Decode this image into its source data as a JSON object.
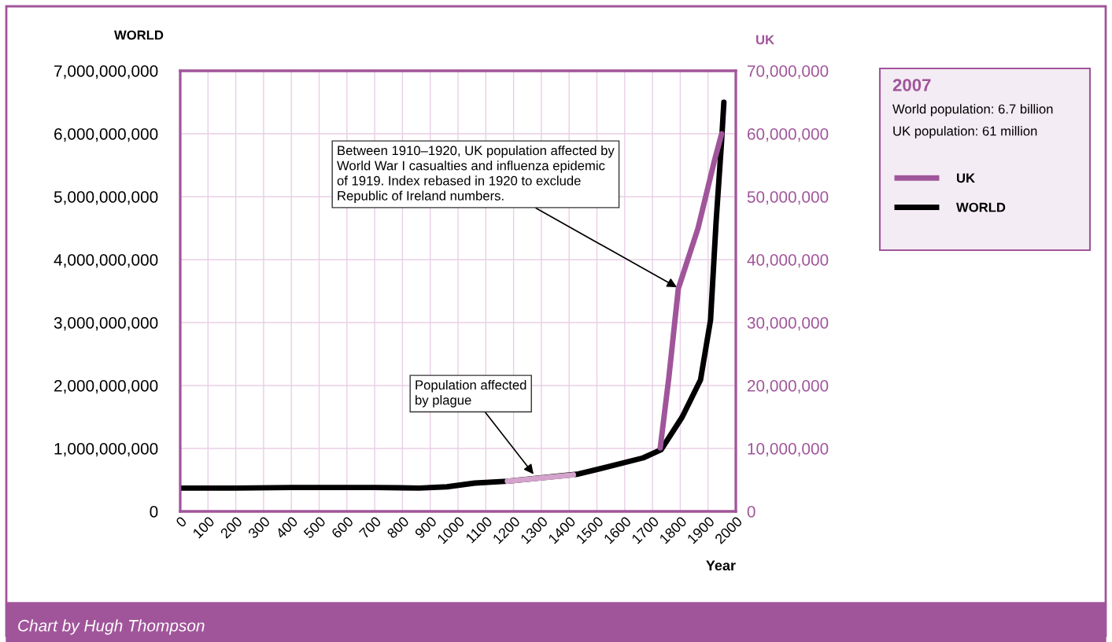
{
  "chart_data": {
    "type": "line",
    "xlabel": "Year",
    "ylabel": "WORLD",
    "y2label": "UK",
    "xlim": [
      0,
      2000
    ],
    "xticks": [
      0,
      100,
      200,
      300,
      400,
      500,
      600,
      700,
      800,
      900,
      1000,
      1100,
      1200,
      1300,
      1400,
      1500,
      1600,
      1700,
      1800,
      1900,
      2000
    ],
    "ylim": [
      0,
      7000000000
    ],
    "yticks": [
      0,
      {
        "value": 1000000000,
        "label": "1,000,000,000"
      },
      {
        "value": 2000000000,
        "label": "2,000,000,000"
      },
      {
        "value": 3000000000,
        "label": "3,000,000,000"
      },
      {
        "value": 4000000000,
        "label": "4,000,000,000"
      },
      {
        "value": 5000000000,
        "label": "5,000,000,000"
      },
      {
        "value": 6000000000,
        "label": "6,000,000,000"
      },
      {
        "value": 7000000000,
        "label": "7,000,000,000"
      }
    ],
    "y2lim": [
      0,
      70000000
    ],
    "y2ticks": [
      0,
      {
        "value": 10000000,
        "label": "10,000,000"
      },
      {
        "value": 20000000,
        "label": "20,000,000"
      },
      {
        "value": 30000000,
        "label": "30,000,000"
      },
      {
        "value": 40000000,
        "label": "40,000,000"
      },
      {
        "value": 50000000,
        "label": "50,000,000"
      },
      {
        "value": 60000000,
        "label": "60,000,000"
      },
      {
        "value": 70000000,
        "label": "70,000,000"
      }
    ],
    "grid": true,
    "legend": "right",
    "marker": "none",
    "line_style": "solid",
    "series": [
      {
        "name": "WORLD",
        "color": "#000000",
        "x": [
          0,
          200,
          400,
          560,
          700,
          860,
          960,
          1060,
          1178,
          1428,
          1541,
          1666,
          1731,
          1807,
          1873,
          1909,
          1929,
          1949,
          1957
        ],
        "values": [
          370000000,
          370000000,
          380000000,
          380000000,
          380000000,
          370000000,
          390000000,
          450000000,
          480000000,
          590000000,
          710000000,
          850000000,
          980000000,
          1500000000,
          2090000000,
          3040000000,
          4600000000,
          5900000000,
          6500000000
        ]
      },
      {
        "name": "UK",
        "color": "#a0559a",
        "axis": "y2",
        "x": [
          1728,
          1759,
          1793,
          1864,
          1924,
          1949
        ],
        "values": [
          10100000,
          21300000,
          35400000,
          45000000,
          55900000,
          60000000
        ]
      },
      {
        "color": "#d4a3cc",
        "axis": "y2",
        "x": [
          1178,
          1415
        ],
        "values": [
          4800000,
          5800000
        ]
      }
    ],
    "annotations": [
      {
        "text": "Between 1910–1920, UK population affected by\nWorld War I casualties and influenza epidemic\nof 1919. Index rebased in 1920 to exclude\nRepublic of Ireland numbers.",
        "x": 1788,
        "y": 3560000000
      },
      {
        "text": "Population affected\nby plague",
        "x": 1272,
        "y": 590000000
      },
      "2007",
      "World population: 6.7 billion",
      "UK population: 61 million",
      "Chart by Hugh Thompson"
    ]
  }
}
